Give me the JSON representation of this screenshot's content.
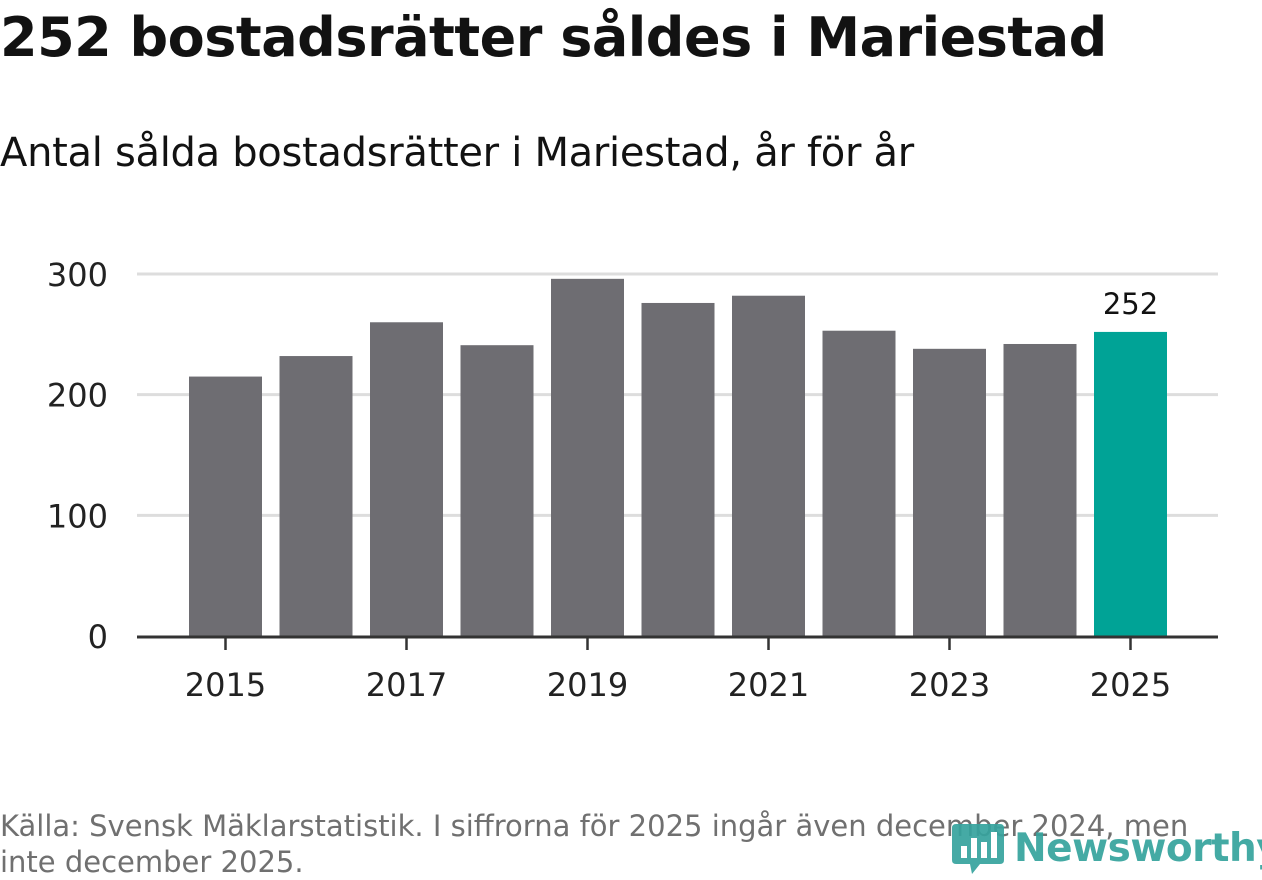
{
  "header": {
    "title": "252 bostadsrätter såldes i Mariestad",
    "subtitle": "Antal sålda bostadsrätter i Mariestad, år för år"
  },
  "footer": {
    "source": "Källa: Svensk Mäklarstatistik. I siffrorna för 2025 ingår även december 2024, men inte december 2025.",
    "logo_text": "Newsworthy"
  },
  "colors": {
    "bar": "#6e6d72",
    "highlight": "#00a396",
    "grid": "#dddddd",
    "axis": "#333333",
    "text": "#222222",
    "logo": "#35a39d"
  },
  "chart_data": {
    "type": "bar",
    "title": "252 bostadsrätter såldes i Mariestad",
    "subtitle": "Antal sålda bostadsrätter i Mariestad, år för år",
    "categories": [
      "2015",
      "2016",
      "2017",
      "2018",
      "2019",
      "2020",
      "2021",
      "2022",
      "2023",
      "2024",
      "2025"
    ],
    "values": [
      215,
      232,
      260,
      241,
      296,
      276,
      282,
      253,
      238,
      242,
      252
    ],
    "highlight_index": 10,
    "data_labels": [
      {
        "index": 10,
        "text": "252"
      }
    ],
    "x_tick_labels": [
      "2015",
      "2017",
      "2019",
      "2021",
      "2023",
      "2025"
    ],
    "y_ticks": [
      0,
      100,
      200,
      300
    ],
    "ylim": [
      0,
      300
    ],
    "xlabel": "",
    "ylabel": "",
    "grid": true,
    "legend": "none"
  }
}
